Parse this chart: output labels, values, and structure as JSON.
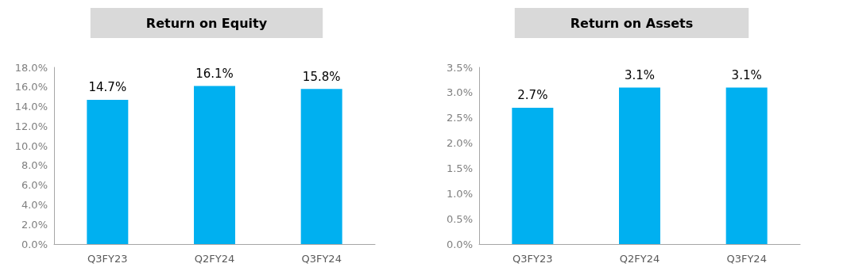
{
  "chart_data": [
    {
      "type": "bar",
      "title": "Return on Equity",
      "categories": [
        "Q3FY23",
        "Q2FY24",
        "Q3FY24"
      ],
      "values": [
        14.7,
        16.1,
        15.8
      ],
      "value_labels": [
        "14.7%",
        "16.1%",
        "15.8%"
      ],
      "color": "#00b0f0",
      "ylim": [
        0,
        18
      ],
      "yticks": [
        {
          "value": 0,
          "label": "0.0%"
        },
        {
          "value": 2,
          "label": "2.0%"
        },
        {
          "value": 4,
          "label": "4.0%"
        },
        {
          "value": 6,
          "label": "6.0%"
        },
        {
          "value": 8,
          "label": "8.0%"
        },
        {
          "value": 10,
          "label": "10.0%"
        },
        {
          "value": 12,
          "label": "12.0%"
        },
        {
          "value": 14,
          "label": "14.0%"
        },
        {
          "value": 16,
          "label": "16.0%"
        },
        {
          "value": 18,
          "label": "18.0%"
        }
      ],
      "grid": false
    },
    {
      "type": "bar",
      "title": "Return on Assets",
      "categories": [
        "Q3FY23",
        "Q2FY24",
        "Q3FY24"
      ],
      "values": [
        2.7,
        3.1,
        3.1
      ],
      "value_labels": [
        "2.7%",
        "3.1%",
        "3.1%"
      ],
      "color": "#00b0f0",
      "ylim": [
        0,
        3.5
      ],
      "yticks": [
        {
          "value": 0,
          "label": "0.0%"
        },
        {
          "value": 0.5,
          "label": "0.5%"
        },
        {
          "value": 1,
          "label": "1.0%"
        },
        {
          "value": 1.5,
          "label": "1.5%"
        },
        {
          "value": 2,
          "label": "2.0%"
        },
        {
          "value": 2.5,
          "label": "2.5%"
        },
        {
          "value": 3,
          "label": "3.0%"
        },
        {
          "value": 3.5,
          "label": "3.5%"
        }
      ],
      "grid": false
    }
  ]
}
